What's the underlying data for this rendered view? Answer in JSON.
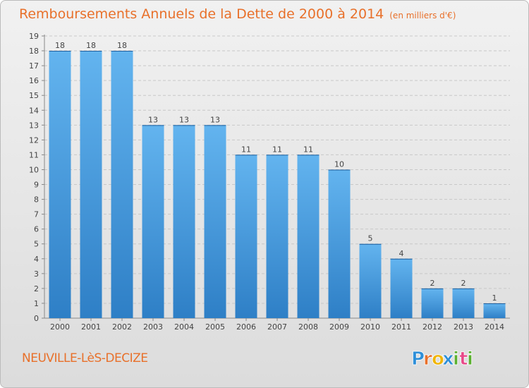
{
  "title": {
    "main": "Remboursements Annuels de la Dette de 2000 à 2014",
    "unit": "(en milliers d'€)"
  },
  "location": "NEUVILLE-LèS-DECIZE",
  "brand": "Proxiti",
  "brand_letters": [
    {
      "ch": "P",
      "color": "#2e8fd8"
    },
    {
      "ch": "r",
      "color": "#e8702a"
    },
    {
      "ch": "o",
      "color": "#f0b400"
    },
    {
      "ch": "x",
      "color": "#2e8fd8"
    },
    {
      "ch": "i",
      "color": "#5bb030"
    },
    {
      "ch": "t",
      "color": "#e84a8a"
    },
    {
      "ch": "i",
      "color": "#5bb030"
    }
  ],
  "colors": {
    "accent": "#e8702a",
    "bar_top": "#63b4ef",
    "bar_bottom": "#2e7fc6",
    "grid": "#c8c8c8",
    "axis_text": "#444444"
  },
  "chart_data": {
    "type": "bar",
    "categories": [
      "2000",
      "2001",
      "2002",
      "2003",
      "2004",
      "2005",
      "2006",
      "2007",
      "2008",
      "2009",
      "2010",
      "2011",
      "2012",
      "2013",
      "2014"
    ],
    "values": [
      18,
      18,
      18,
      13,
      13,
      13,
      11,
      11,
      11,
      10,
      5,
      4,
      2,
      2,
      1
    ],
    "ylim": [
      0,
      19
    ],
    "yticks": [
      0,
      1,
      2,
      3,
      4,
      5,
      6,
      7,
      8,
      9,
      10,
      11,
      12,
      13,
      14,
      15,
      16,
      17,
      18,
      19
    ],
    "grid": true,
    "legend": "none"
  }
}
